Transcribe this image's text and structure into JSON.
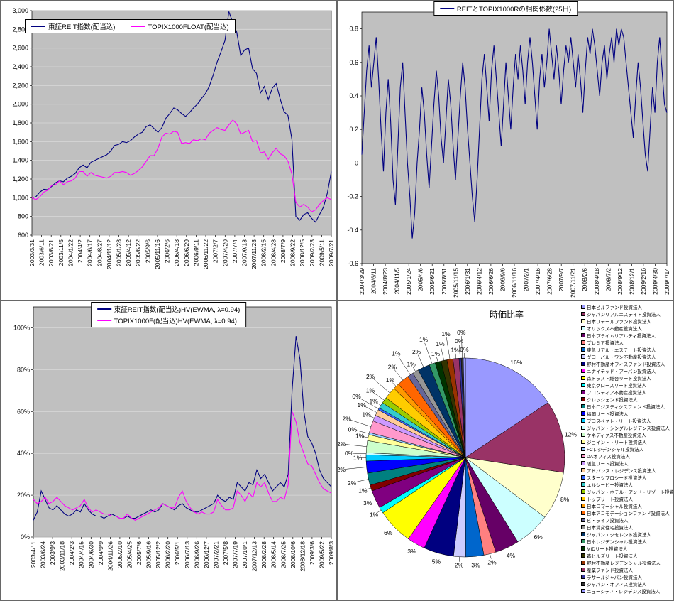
{
  "page": {
    "background": "#ffffff"
  },
  "chart_data": [
    {
      "type": "line",
      "title": "",
      "legend_position": "top-left",
      "grid": true,
      "ylim": [
        600,
        3000
      ],
      "y_ticks": [
        {
          "v": 3000,
          "label": "3,000"
        },
        {
          "v": 2800,
          "label": "2,800"
        },
        {
          "v": 2600,
          "label": "2,600"
        },
        {
          "v": 2400,
          "label": "2,400"
        },
        {
          "v": 2200,
          "label": "2,200"
        },
        {
          "v": 2000,
          "label": "2,000"
        },
        {
          "v": 1800,
          "label": "1,800"
        },
        {
          "v": 1600,
          "label": "1,600"
        },
        {
          "v": 1400,
          "label": "1,400"
        },
        {
          "v": 1200,
          "label": "1,200"
        },
        {
          "v": 1000,
          "label": "1,000"
        },
        {
          "v": 800,
          "label": "800"
        },
        {
          "v": 600,
          "label": "600"
        }
      ],
      "x_tick_labels": [
        "2003/3/31",
        "2003/6/11",
        "2003/8/21",
        "2003/11/5",
        "2004/1/22",
        "2004/4/2",
        "2004/6/17",
        "2004/8/27",
        "2004/11/12",
        "2005/1/28",
        "2005/4/12",
        "2005/6/22",
        "2005/9/6",
        "2005/11/16",
        "2006/2/6",
        "2006/4/18",
        "2006/6/29",
        "2006/9/11",
        "2006/11/22",
        "2007/2/7",
        "2007/4/20",
        "2007/7/4",
        "2007/9/13",
        "2007/11/28",
        "2008/2/15",
        "2008/4/28",
        "2008/7/9",
        "2008/9/22",
        "2008/12/5",
        "2009/2/23",
        "2009/5/11",
        "2009/7/21"
      ],
      "series": [
        {
          "name": "東証REIT指数(配当込)",
          "color": "#000080",
          "values": [
            1000,
            1010,
            1060,
            1090,
            1085,
            1120,
            1160,
            1180,
            1170,
            1210,
            1230,
            1260,
            1320,
            1350,
            1320,
            1380,
            1400,
            1420,
            1440,
            1460,
            1500,
            1560,
            1570,
            1600,
            1590,
            1610,
            1650,
            1680,
            1700,
            1760,
            1780,
            1740,
            1700,
            1750,
            1850,
            1900,
            1960,
            1940,
            1900,
            1870,
            1910,
            1960,
            2000,
            2060,
            2110,
            2190,
            2310,
            2450,
            2560,
            2680,
            2990,
            2870,
            2770,
            2520,
            2580,
            2600,
            2380,
            2330,
            2120,
            2190,
            2050,
            2170,
            2220,
            2060,
            1920,
            1880,
            1620,
            800,
            760,
            820,
            840,
            780,
            740,
            820,
            900,
            1050,
            1280
          ]
        },
        {
          "name": "TOPIX1000FLOAT(配当込)",
          "color": "#FF00FF",
          "values": [
            1000,
            980,
            1010,
            1060,
            1080,
            1130,
            1140,
            1180,
            1140,
            1170,
            1180,
            1210,
            1280,
            1280,
            1230,
            1270,
            1240,
            1230,
            1220,
            1210,
            1230,
            1270,
            1270,
            1280,
            1270,
            1240,
            1260,
            1290,
            1330,
            1390,
            1450,
            1450,
            1530,
            1650,
            1690,
            1680,
            1710,
            1700,
            1580,
            1590,
            1580,
            1620,
            1610,
            1630,
            1620,
            1690,
            1720,
            1750,
            1730,
            1720,
            1780,
            1830,
            1790,
            1680,
            1700,
            1720,
            1600,
            1610,
            1480,
            1490,
            1410,
            1480,
            1530,
            1470,
            1450,
            1390,
            1250,
            950,
            900,
            930,
            900,
            850,
            870,
            930,
            970,
            1000,
            980
          ]
        }
      ]
    },
    {
      "type": "line",
      "title": "REITとTOPIX1000Rの相関係数(25日)",
      "grid": false,
      "zero_line": true,
      "ylim": [
        -0.6,
        0.9
      ],
      "y_ticks": [
        {
          "v": 0.8,
          "label": "0.8"
        },
        {
          "v": 0.6,
          "label": "0.6"
        },
        {
          "v": 0.4,
          "label": "0.4"
        },
        {
          "v": 0.2,
          "label": "0.2"
        },
        {
          "v": 0,
          "label": "0"
        },
        {
          "v": -0.2,
          "label": "-0.2"
        },
        {
          "v": -0.4,
          "label": "-0.4"
        },
        {
          "v": -0.6,
          "label": "-0.6"
        }
      ],
      "x_tick_labels": [
        "2004/3/29",
        "2004/6/11",
        "2004/8/23",
        "2004/11/5",
        "2005/1/24",
        "2005/4/6",
        "2005/6/21",
        "2005/8/31",
        "2005/11/15",
        "2006/1/31",
        "2006/4/12",
        "2006/6/26",
        "2006/9/6",
        "2006/11/16",
        "2007/2/1",
        "2007/4/16",
        "2007/6/28",
        "2007/9/7",
        "2007/11/21",
        "2008/2/6",
        "2008/4/18",
        "2008/7/2",
        "2008/9/12",
        "2008/12/1",
        "2009/2/16",
        "2009/4/30",
        "2009/7/14"
      ],
      "series": [
        {
          "name": "REITとTOPIX1000Rの相関係数(25日)",
          "color": "#000080",
          "values": [
            0.05,
            0.3,
            0.55,
            0.7,
            0.45,
            0.6,
            0.75,
            0.5,
            0.2,
            -0.05,
            0.3,
            0.5,
            0.25,
            -0.1,
            -0.25,
            0.1,
            0.45,
            0.6,
            0.3,
            0,
            -0.2,
            -0.45,
            -0.3,
            0,
            0.2,
            0.45,
            0.3,
            0.05,
            -0.15,
            0.1,
            0.35,
            0.55,
            0.4,
            0.15,
            0,
            0.25,
            0.5,
            0.35,
            0.1,
            -0.1,
            0.15,
            0.4,
            0.6,
            0.45,
            0.2,
            0,
            -0.2,
            -0.35,
            -0.1,
            0.2,
            0.5,
            0.65,
            0.45,
            0.25,
            0.55,
            0.7,
            0.5,
            0.3,
            0.1,
            0.35,
            0.6,
            0.4,
            0.2,
            0.45,
            0.65,
            0.5,
            0.7,
            0.55,
            0.35,
            0.6,
            0.75,
            0.6,
            0.4,
            0.2,
            0.5,
            0.65,
            0.45,
            0.6,
            0.8,
            0.65,
            0.5,
            0.7,
            0.55,
            0.35,
            0.55,
            0.7,
            0.6,
            0.75,
            0.6,
            0.45,
            0.65,
            0.5,
            0.3,
            0.55,
            0.75,
            0.65,
            0.8,
            0.7,
            0.55,
            0.4,
            0.6,
            0.7,
            0.5,
            0.65,
            0.75,
            0.6,
            0.8,
            0.7,
            0.8,
            0.75,
            0.6,
            0.45,
            0.3,
            0.15,
            0.4,
            0.6,
            0.45,
            0.25,
            0.05,
            -0.05,
            0.2,
            0.45,
            0.3,
            0.6,
            0.75,
            0.55,
            0.35,
            0.3
          ]
        }
      ]
    },
    {
      "type": "line",
      "title": "",
      "legend_position": "top-center",
      "grid": true,
      "ylim": [
        0,
        110
      ],
      "y_ticks": [
        {
          "v": 100,
          "label": "100%"
        },
        {
          "v": 80,
          "label": "80%"
        },
        {
          "v": 60,
          "label": "60%"
        },
        {
          "v": 40,
          "label": "40%"
        },
        {
          "v": 20,
          "label": "20%"
        },
        {
          "v": 0,
          "label": "0%"
        }
      ],
      "x_tick_labels": [
        "2003/4/11",
        "2003/6/24",
        "2003/9/3",
        "2003/11/18",
        "2004/2/3",
        "2004/4/15",
        "2004/6/30",
        "2004/9/9",
        "2004/11/26",
        "2005/2/10",
        "2005/4/25",
        "2005/7/6",
        "2005/9/16",
        "2005/12/2",
        "2006/2/20",
        "2006/5/1",
        "2006/7/13",
        "2006/9/26",
        "2006/12/7",
        "2007/2/21",
        "2007/5/8",
        "2007/7/19",
        "2007/10/1",
        "2007/12/13",
        "2008/2/28",
        "2008/5/14",
        "2008/7/25",
        "2008/10/6",
        "2008/12/18",
        "2009/3/6",
        "2009/5/22",
        "2009/8/3"
      ],
      "series": [
        {
          "name": "東証REIT指数(配当込)HV(EWMA, λ=0.94)",
          "color": "#000080",
          "values": [
            8,
            12,
            22,
            18,
            14,
            13,
            15,
            13,
            11,
            10,
            11,
            13,
            12,
            16,
            13,
            11,
            10,
            10,
            9,
            10,
            11,
            10,
            9,
            9,
            10,
            9,
            9,
            10,
            11,
            12,
            13,
            12,
            13,
            16,
            15,
            14,
            13,
            15,
            16,
            14,
            13,
            12,
            12,
            13,
            14,
            15,
            16,
            20,
            18,
            17,
            19,
            18,
            26,
            24,
            22,
            26,
            25,
            32,
            28,
            30,
            26,
            22,
            24,
            26,
            24,
            30,
            70,
            96,
            85,
            60,
            48,
            45,
            40,
            32,
            28,
            26,
            24
          ]
        },
        {
          "name": "TOPIX1000F(配当込)HV(EWMA, λ=0.94)",
          "color": "#FF00FF",
          "values": [
            18,
            16,
            17,
            19,
            16,
            17,
            19,
            17,
            15,
            14,
            13,
            14,
            15,
            18,
            14,
            12,
            13,
            12,
            11,
            11,
            10,
            10,
            9,
            9,
            11,
            9,
            8,
            9,
            10,
            11,
            12,
            13,
            14,
            16,
            15,
            14,
            14,
            19,
            22,
            17,
            14,
            12,
            11,
            12,
            11,
            11,
            12,
            18,
            15,
            13,
            13,
            14,
            22,
            20,
            17,
            21,
            19,
            26,
            24,
            26,
            21,
            17,
            17,
            19,
            18,
            25,
            60,
            55,
            45,
            40,
            35,
            34,
            30,
            26,
            23,
            22,
            21
          ]
        }
      ]
    },
    {
      "type": "pie",
      "title": "時価比率",
      "labels": [
        "日本ビルファンド投資法人",
        "ジャパンリアルエステイト投資法人",
        "日本リテールファンド投資法人",
        "オリックス不動産投資法人",
        "日本プライムリアルティ投資法人",
        "プレミア投資法人",
        "東急リアル・エステート投資法人",
        "グローバル・ワン不動産投資法人",
        "野村不動産オフィスファンド投資法人",
        "ユナイテッド・アーバン投資法人",
        "森トラスト総合リート投資法人",
        "東京グロースリート投資法人",
        "フロンティア不動産投資法人",
        "クレッシェンド投資法人",
        "日本ロジスティクスファンド投資法人",
        "福岡リート投資法人",
        "プロスペクト・リート投資法人",
        "ジャパン・シングルレジデンス投資法人",
        "ケネディクス不動産投資法人",
        "ジョイント・リート投資法人",
        "FCレジデンシャル投資法人",
        "DAオフィス投資法人",
        "阪急リート投資法人",
        "アドバンス・レジデンス投資法人",
        "スターツプロシード投資法人",
        "エルシーピー投資法人",
        "ジャパン・ホテル・アンド・リゾート投資法人",
        "トップリート投資法人",
        "日本コマーシャル投資法人",
        "日本アコモデーションファンド投資法人",
        "ビ・ライフ投資法人",
        "日本賃貸住宅投資法人",
        "ジャパンエクセレント投資法人",
        "日本レジデンシャル投資法人",
        "MIDリート投資法人",
        "森ヒルズリート投資法人",
        "野村不動産レジデンシャル投資法人",
        "産業ファンド投資法人",
        "ラサールジャパン投資法人",
        "ジャパン・オフィス投資法人",
        "ニューシティ・レジデンス投資法人"
      ],
      "values": [
        16,
        12,
        8,
        6,
        4,
        2,
        3,
        2,
        5,
        3,
        6,
        1,
        3,
        1,
        2,
        2,
        1,
        0,
        2,
        1,
        0,
        2,
        1,
        1,
        0,
        1,
        1,
        2,
        1,
        2,
        1,
        1,
        2,
        1,
        1,
        1,
        1,
        1,
        0,
        0,
        0
      ],
      "colors": [
        "#9999FF",
        "#993366",
        "#FFFFCC",
        "#CCFFFF",
        "#660066",
        "#FF8080",
        "#0066CC",
        "#CCCCFF",
        "#000080",
        "#FF00FF",
        "#FFFF00",
        "#00FFFF",
        "#800080",
        "#800000",
        "#008080",
        "#0000FF",
        "#00CCFF",
        "#CCFFFF",
        "#CCFFCC",
        "#FFFF99",
        "#99CCFF",
        "#FF99CC",
        "#CC99FF",
        "#FFCC99",
        "#3366FF",
        "#33CCCC",
        "#99CC00",
        "#FFCC00",
        "#FF9900",
        "#FF6600",
        "#666699",
        "#969696",
        "#003366",
        "#339966",
        "#003300",
        "#333300",
        "#993300",
        "#993366",
        "#333399",
        "#333333",
        "#9999FF"
      ]
    }
  ],
  "colors": {
    "plot_background": "#c0c0c0",
    "gridline": "#d9d9d9",
    "axis": "#000000",
    "series_reit": "#000080",
    "series_topix": "#FF00FF"
  }
}
